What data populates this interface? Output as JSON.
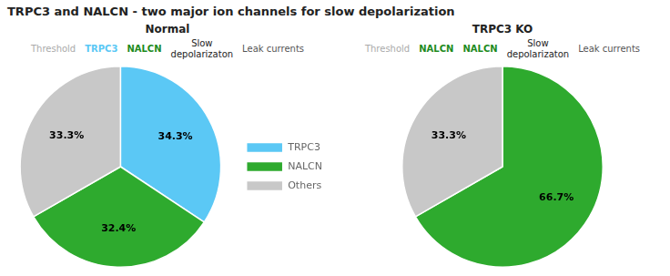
{
  "chart_data": [
    {
      "type": "pie",
      "title": "TRPC3 and NALCN - two major ion channels for slow depolarization",
      "subtitle": "Normal",
      "annotations": [
        {
          "text": "Threshold",
          "color": "#AAAAAA"
        },
        {
          "text": "TRPC3",
          "color": "#5BC8F5"
        },
        {
          "text": "NALCN",
          "color": "#1E8B1E"
        },
        {
          "text": "Slow\ndepolarizaton"
        },
        {
          "text": "Leak currents",
          "color": "#555555"
        }
      ],
      "categories": [
        "TRPC3",
        "NALCN",
        "Others"
      ],
      "values": [
        34.3,
        32.4,
        33.3
      ],
      "value_labels": [
        "34.3%",
        "32.4%",
        "33.3%"
      ],
      "colors": [
        "#5BC8F5",
        "#2EAA2E",
        "#C8C8C8"
      ],
      "data_labels": true,
      "legend": "right"
    },
    {
      "type": "pie",
      "subtitle": "TRPC3 KO",
      "annotations": [
        {
          "text": "Threshold",
          "color": "#AAAAAA"
        },
        {
          "text": "NALCN",
          "color": "#1E8B1E"
        },
        {
          "text": "NALCN",
          "color": "#1E8B1E"
        },
        {
          "text": "Slow\ndepolarizaton"
        },
        {
          "text": "Leak currents",
          "color": "#555555"
        }
      ],
      "categories": [
        "NALCN",
        "Others"
      ],
      "values": [
        66.7,
        33.3
      ],
      "value_labels": [
        "66.7%",
        "33.3%"
      ],
      "colors": [
        "#2EAA2E",
        "#C8C8C8"
      ],
      "data_labels": true
    }
  ]
}
